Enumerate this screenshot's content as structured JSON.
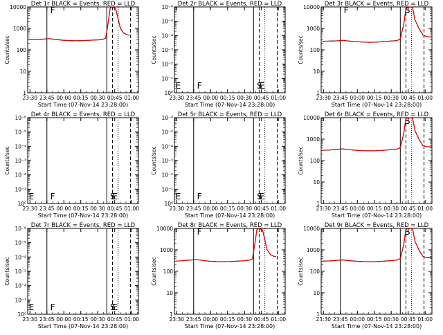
{
  "page": {
    "x_tick_labels": [
      "23:30",
      "23:45",
      "00:00",
      "00:15",
      "00:30",
      "00:45",
      "01:00"
    ],
    "x_label": "Start Time (07-Nov-14 23:28:00)",
    "y_label": "Counts/sec",
    "colors": {
      "events": "#000000",
      "lld": "#ff0000",
      "axes": "#000000",
      "background": "#ffffff"
    }
  },
  "chart_data": [
    {
      "type": "line",
      "title": "Det 1r  BLACK = Events, RED = LLD",
      "xlabel": "Start Time (07-Nov-14 23:28:00)",
      "ylabel": "Counts/sec",
      "yscale": "log",
      "ylim": [
        1,
        10000
      ],
      "y_tick_labels": [
        "1",
        "10",
        "100",
        "1000",
        "10000"
      ],
      "markers": [
        {
          "label": "F",
          "x": "23:48"
        }
      ],
      "series": [
        {
          "name": "Events",
          "color": "#000000",
          "x": [
            "23:29",
            "23:35",
            "23:41",
            "23:47",
            "23:53",
            "23:59",
            "00:05",
            "00:11",
            "00:17",
            "00:23",
            "00:29",
            "00:34",
            "00:37",
            "00:39",
            "00:41",
            "00:43",
            "00:46",
            "00:50",
            "00:53",
            "00:56",
            "00:58"
          ],
          "y": [
            300,
            305,
            315,
            330,
            305,
            280,
            270,
            265,
            270,
            280,
            290,
            300,
            350,
            1500,
            9000,
            10000,
            8000,
            1000,
            600,
            500,
            480
          ]
        },
        {
          "name": "LLD",
          "color": "#ff0000",
          "x": [
            "23:29",
            "23:35",
            "23:41",
            "23:47",
            "23:53",
            "23:59",
            "00:05",
            "00:11",
            "00:17",
            "00:23",
            "00:29",
            "00:34",
            "00:37",
            "00:39",
            "00:41",
            "00:43",
            "00:46",
            "00:50",
            "00:53",
            "00:56",
            "00:58"
          ],
          "y": [
            300,
            305,
            315,
            330,
            305,
            280,
            270,
            265,
            270,
            280,
            290,
            300,
            350,
            1500,
            9000,
            10000,
            8000,
            1000,
            600,
            500,
            480
          ]
        }
      ]
    },
    {
      "type": "line",
      "title": "Det 2r  BLACK = Events, RED = LLD",
      "xlabel": "Start Time (07-Nov-14 23:28:00)",
      "ylabel": "Counts/sec",
      "yscale": "log",
      "ylim": [
        1,
        1e-06
      ],
      "y_tick_labels": [
        "10⁰",
        "10⁻¹",
        "10⁻²",
        "10⁻³",
        "10⁻⁴",
        "10⁻⁵",
        "10⁻⁶"
      ],
      "markers": [
        {
          "label": "E",
          "x": "23:29"
        },
        {
          "label": "F",
          "x": "23:48"
        },
        {
          "label": "S",
          "x": "00:41"
        },
        {
          "label": "E",
          "x": "00:43"
        }
      ],
      "series": []
    },
    {
      "type": "line",
      "title": "Det 3r  BLACK = Events, RED = LLD",
      "xlabel": "Start Time (07-Nov-14 23:28:00)",
      "ylabel": "Counts/sec",
      "yscale": "log",
      "ylim": [
        1,
        10000
      ],
      "y_tick_labels": [
        "1",
        "10",
        "100",
        "1000",
        "10000"
      ],
      "markers": [
        {
          "label": "F",
          "x": "23:48"
        },
        {
          "label": "S",
          "x": "00:42"
        }
      ],
      "series": [
        {
          "name": "Events",
          "color": "#000000",
          "x": [
            "23:29",
            "23:35",
            "23:41",
            "23:47",
            "23:53",
            "23:59",
            "00:05",
            "00:11",
            "00:17",
            "00:23",
            "00:29",
            "00:35",
            "00:38",
            "00:41",
            "00:43",
            "00:45",
            "00:47",
            "00:49",
            "00:51",
            "00:55",
            "00:58",
            "01:01",
            "01:04",
            "01:06"
          ],
          "y": [
            250,
            255,
            260,
            275,
            255,
            240,
            230,
            225,
            230,
            240,
            255,
            270,
            320,
            1500,
            8000,
            12000,
            11500,
            9000,
            2500,
            900,
            500,
            420,
            400,
            400
          ]
        },
        {
          "name": "LLD",
          "color": "#ff0000",
          "x": [
            "23:29",
            "23:35",
            "23:41",
            "23:47",
            "23:53",
            "23:59",
            "00:05",
            "00:11",
            "00:17",
            "00:23",
            "00:29",
            "00:35",
            "00:38",
            "00:41",
            "00:43",
            "00:45",
            "00:47",
            "00:49",
            "00:51",
            "00:55",
            "00:58",
            "01:01",
            "01:04",
            "01:06"
          ],
          "y": [
            250,
            255,
            260,
            275,
            255,
            240,
            230,
            225,
            230,
            240,
            255,
            270,
            320,
            1500,
            8000,
            12000,
            11500,
            9000,
            2500,
            900,
            500,
            420,
            400,
            400
          ]
        }
      ]
    },
    {
      "type": "line",
      "title": "Det 4r  BLACK = Events, RED = LLD",
      "xlabel": "Start Time (07-Nov-14 23:28:00)",
      "ylabel": "Counts/sec",
      "yscale": "log",
      "ylim": [
        1,
        1e-06
      ],
      "y_tick_labels": [
        "10⁰",
        "10⁻¹",
        "10⁻²",
        "10⁻³",
        "10⁻⁴",
        "10⁻⁵",
        "10⁻⁶"
      ],
      "markers": [
        {
          "label": "E",
          "x": "23:29"
        },
        {
          "label": "F",
          "x": "23:48"
        },
        {
          "label": "S",
          "x": "00:41"
        },
        {
          "label": "E",
          "x": "00:43"
        }
      ],
      "series": []
    },
    {
      "type": "line",
      "title": "Det 5r  BLACK = Events, RED = LLD",
      "xlabel": "Start Time (07-Nov-14 23:28:00)",
      "ylabel": "Counts/sec",
      "yscale": "log",
      "ylim": [
        1,
        1e-06
      ],
      "y_tick_labels": [
        "10⁰",
        "10⁻¹",
        "10⁻²",
        "10⁻³",
        "10⁻⁴",
        "10⁻⁵",
        "10⁻⁶"
      ],
      "markers": [
        {
          "label": "E",
          "x": "23:29"
        },
        {
          "label": "F",
          "x": "23:48"
        },
        {
          "label": "S",
          "x": "00:41"
        },
        {
          "label": "E",
          "x": "00:43"
        }
      ],
      "series": []
    },
    {
      "type": "line",
      "title": "Det 6r  BLACK = Events, RED = LLD",
      "xlabel": "Start Time (07-Nov-14 23:28:00)",
      "ylabel": "Counts/sec",
      "yscale": "log",
      "ylim": [
        1,
        10000
      ],
      "y_tick_labels": [
        "1",
        "10",
        "100",
        "1000",
        "10000"
      ],
      "markers": [
        {
          "label": "S",
          "x": "00:42"
        }
      ],
      "series": [
        {
          "name": "Events",
          "color": "#000000",
          "x": [
            "23:29",
            "23:35",
            "23:41",
            "23:47",
            "23:53",
            "23:59",
            "00:05",
            "00:11",
            "00:17",
            "00:23",
            "00:29",
            "00:35",
            "00:38",
            "00:41",
            "00:43",
            "00:45",
            "00:47",
            "00:49",
            "00:51",
            "00:55",
            "00:58",
            "01:01",
            "01:04",
            "01:06"
          ],
          "y": [
            300,
            310,
            330,
            350,
            320,
            300,
            290,
            285,
            290,
            300,
            320,
            340,
            400,
            1800,
            9000,
            12000,
            11500,
            9000,
            2500,
            900,
            500,
            450,
            440,
            440
          ]
        },
        {
          "name": "LLD",
          "color": "#ff0000",
          "x": [
            "23:29",
            "23:35",
            "23:41",
            "23:47",
            "23:53",
            "23:59",
            "00:05",
            "00:11",
            "00:17",
            "00:23",
            "00:29",
            "00:35",
            "00:38",
            "00:41",
            "00:43",
            "00:45",
            "00:47",
            "00:49",
            "00:51",
            "00:55",
            "00:58",
            "01:01",
            "01:04",
            "01:06"
          ],
          "y": [
            300,
            310,
            330,
            350,
            320,
            300,
            290,
            285,
            290,
            300,
            320,
            340,
            400,
            1800,
            9000,
            12000,
            11500,
            9000,
            2500,
            900,
            500,
            450,
            440,
            440
          ]
        }
      ]
    },
    {
      "type": "line",
      "title": "Det 7r  BLACK = Events, RED = LLD",
      "xlabel": "Start Time (07-Nov-14 23:28:00)",
      "ylabel": "Counts/sec",
      "yscale": "log",
      "ylim": [
        1,
        1e-06
      ],
      "y_tick_labels": [
        "10⁰",
        "10⁻¹",
        "10⁻²",
        "10⁻³",
        "10⁻⁴",
        "10⁻⁵",
        "10⁻⁶"
      ],
      "markers": [
        {
          "label": "E",
          "x": "23:29"
        },
        {
          "label": "F",
          "x": "23:48"
        },
        {
          "label": "S",
          "x": "00:41"
        },
        {
          "label": "E",
          "x": "00:43"
        }
      ],
      "series": []
    },
    {
      "type": "line",
      "title": "Det 8r  BLACK = Events, RED = LLD",
      "xlabel": "Start Time (07-Nov-14 23:28:00)",
      "ylabel": "Counts/sec",
      "yscale": "log",
      "ylim": [
        1,
        10000
      ],
      "y_tick_labels": [
        "1",
        "10",
        "100",
        "1000",
        "10000"
      ],
      "markers": [
        {
          "label": "F",
          "x": "23:48"
        }
      ],
      "series": [
        {
          "name": "Events",
          "color": "#000000",
          "x": [
            "23:29",
            "23:35",
            "23:41",
            "23:47",
            "23:53",
            "23:59",
            "00:05",
            "00:11",
            "00:17",
            "00:23",
            "00:29",
            "00:34",
            "00:37",
            "00:39",
            "00:41",
            "00:43",
            "00:46",
            "00:50",
            "00:53",
            "00:56",
            "00:58"
          ],
          "y": [
            300,
            310,
            330,
            360,
            320,
            295,
            285,
            280,
            285,
            295,
            310,
            330,
            380,
            1700,
            9000,
            10000,
            8500,
            1000,
            600,
            500,
            480
          ]
        },
        {
          "name": "LLD",
          "color": "#ff0000",
          "x": [
            "23:29",
            "23:35",
            "23:41",
            "23:47",
            "23:53",
            "23:59",
            "00:05",
            "00:11",
            "00:17",
            "00:23",
            "00:29",
            "00:34",
            "00:37",
            "00:39",
            "00:41",
            "00:43",
            "00:46",
            "00:50",
            "00:53",
            "00:56",
            "00:58"
          ],
          "y": [
            300,
            310,
            330,
            360,
            320,
            295,
            285,
            280,
            285,
            295,
            310,
            330,
            380,
            1700,
            9000,
            10000,
            8500,
            1000,
            600,
            500,
            480
          ]
        }
      ]
    },
    {
      "type": "line",
      "title": "Det 9r  BLACK = Events, RED = LLD",
      "xlabel": "Start Time (07-Nov-14 23:28:00)",
      "ylabel": "Counts/sec",
      "yscale": "log",
      "ylim": [
        1,
        10000
      ],
      "y_tick_labels": [
        "1",
        "10",
        "100",
        "1000",
        "10000"
      ],
      "markers": [
        {
          "label": "S",
          "x": "00:42"
        }
      ],
      "series": [
        {
          "name": "Events",
          "color": "#000000",
          "x": [
            "23:29",
            "23:35",
            "23:41",
            "23:47",
            "23:53",
            "23:59",
            "00:05",
            "00:11",
            "00:17",
            "00:23",
            "00:29",
            "00:35",
            "00:38",
            "00:41",
            "00:43",
            "00:45",
            "00:47",
            "00:49",
            "00:51",
            "00:55",
            "00:58",
            "01:01",
            "01:04",
            "01:06"
          ],
          "y": [
            300,
            305,
            320,
            340,
            315,
            295,
            285,
            280,
            285,
            295,
            315,
            335,
            390,
            1700,
            9000,
            12000,
            11500,
            9000,
            2500,
            900,
            500,
            440,
            430,
            430
          ]
        },
        {
          "name": "LLD",
          "color": "#ff0000",
          "x": [
            "23:29",
            "23:35",
            "23:41",
            "23:47",
            "23:53",
            "23:59",
            "00:05",
            "00:11",
            "00:17",
            "00:23",
            "00:29",
            "00:35",
            "00:38",
            "00:41",
            "00:43",
            "00:45",
            "00:47",
            "00:49",
            "00:51",
            "00:55",
            "00:58",
            "01:01",
            "01:04",
            "01:06"
          ],
          "y": [
            300,
            305,
            320,
            340,
            315,
            295,
            285,
            280,
            285,
            295,
            315,
            335,
            390,
            1700,
            9000,
            12000,
            11500,
            9000,
            2500,
            900,
            500,
            440,
            430,
            430
          ]
        }
      ]
    }
  ]
}
